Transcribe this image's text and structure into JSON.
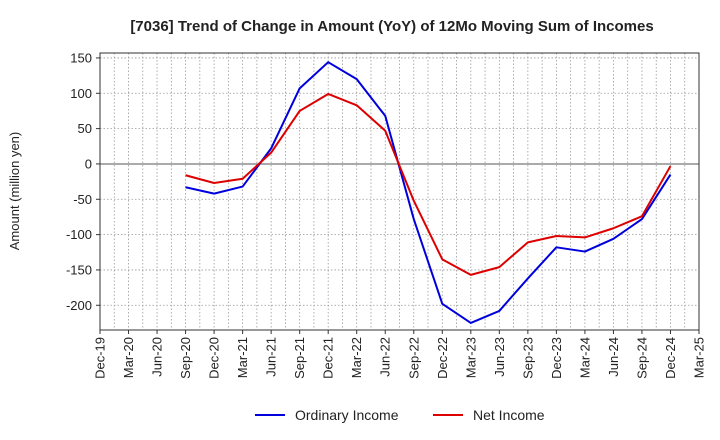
{
  "chart_data": {
    "type": "line",
    "title": "[7036]  Trend of Change in Amount (YoY) of 12Mo Moving Sum of Incomes",
    "xlabel": "",
    "ylabel": "Amount (million yen)",
    "ylim": [
      -235,
      157
    ],
    "yticks": [
      150,
      100,
      50,
      0,
      -50,
      -100,
      -150,
      -200
    ],
    "categories": [
      "Dec-19",
      "Mar-20",
      "Jun-20",
      "Sep-20",
      "Dec-20",
      "Mar-21",
      "Jun-21",
      "Sep-21",
      "Dec-21",
      "Mar-22",
      "Jun-22",
      "Sep-22",
      "Dec-22",
      "Mar-23",
      "Jun-23",
      "Sep-23",
      "Dec-23",
      "Mar-24",
      "Jun-24",
      "Sep-24",
      "Dec-24",
      "Mar-25"
    ],
    "series": [
      {
        "name": "Ordinary Income",
        "color": "#0000dd",
        "values": [
          null,
          null,
          null,
          -33,
          -42,
          -32,
          22,
          107,
          144,
          120,
          68,
          -78,
          -198,
          -225,
          -208,
          -162,
          -118,
          -124,
          -106,
          -78,
          -15,
          null
        ]
      },
      {
        "name": "Net Income",
        "color": "#dd0000",
        "values": [
          null,
          null,
          null,
          -16,
          -27,
          -21,
          16,
          75,
          99,
          83,
          47,
          -52,
          -135,
          -157,
          -146,
          -111,
          -102,
          -104,
          -91,
          -74,
          -3,
          null
        ]
      }
    ],
    "grid": true,
    "legend_position": "bottom-center"
  }
}
